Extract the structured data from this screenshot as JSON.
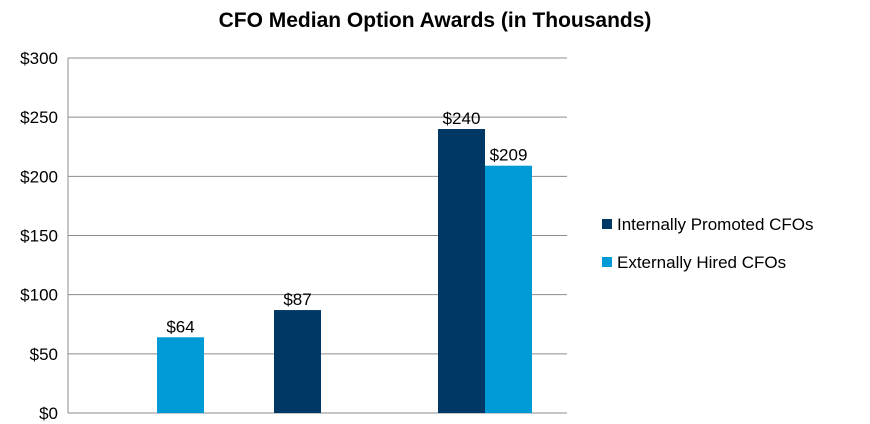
{
  "chart_data": {
    "type": "bar",
    "title": "CFO Median Option Awards (in Thousands)",
    "xlabel": "",
    "ylabel": "",
    "ylim": [
      0,
      300
    ],
    "y_ticks": [
      0,
      50,
      100,
      150,
      200,
      250,
      300
    ],
    "y_tick_labels": [
      "$0",
      "$50",
      "$100",
      "$150",
      "$200",
      "$250",
      "$300"
    ],
    "grid": true,
    "legend_position": "right",
    "groups": 3,
    "series": [
      {
        "name": "Internally Promoted CFOs",
        "color": "#003865",
        "values": [
          null,
          87,
          240
        ],
        "labels": [
          null,
          "$87",
          "$240"
        ]
      },
      {
        "name": "Externally Hired CFOs",
        "color": "#009ad6",
        "values": [
          64,
          null,
          209
        ],
        "labels": [
          "$64",
          null,
          "$209"
        ]
      }
    ]
  }
}
